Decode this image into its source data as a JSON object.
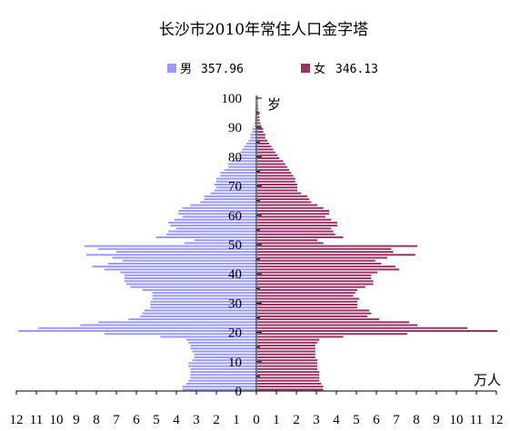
{
  "chart_data": {
    "type": "bar",
    "orientation": "horizontal-population-pyramid",
    "title": "长沙市2010年常住人口金字塔",
    "y_unit_label": "岁",
    "x_unit_label": "万人",
    "y_ticks": [
      "100",
      "90",
      "80",
      "70",
      "60",
      "50",
      "40",
      "30",
      "20",
      "10",
      "0"
    ],
    "x_ticks_left": [
      "12",
      "11",
      "10",
      "9",
      "8",
      "7",
      "6",
      "5",
      "4",
      "3",
      "2",
      "1",
      "0"
    ],
    "x_ticks_right": [
      "1",
      "2",
      "3",
      "4",
      "5",
      "6",
      "7",
      "8",
      "9",
      "10",
      "11",
      "12"
    ],
    "xlim": [
      -12,
      12
    ],
    "ylim": [
      0,
      100
    ],
    "grid": false,
    "legend_position": "top",
    "series": [
      {
        "name": "男",
        "total": "357.96",
        "color": "#9999ff",
        "side": "left",
        "values": [
          3.7,
          3.7,
          3.5,
          3.4,
          3.3,
          3.3,
          3.3,
          3.3,
          3.4,
          3.4,
          3.2,
          3.1,
          3.1,
          3.2,
          3.3,
          3.3,
          3.4,
          3.5,
          4.8,
          7.6,
          11.9,
          10.9,
          8.8,
          7.9,
          6.4,
          5.8,
          5.7,
          5.6,
          5.3,
          5.3,
          5.3,
          5.2,
          5.2,
          5.2,
          5.7,
          6.3,
          6.5,
          6.6,
          6.6,
          6.6,
          6.8,
          7.6,
          8.2,
          7.4,
          6.7,
          7.2,
          8.5,
          7.0,
          7.9,
          8.6,
          3.6,
          3.1,
          5.0,
          4.5,
          4.4,
          4.0,
          4.3,
          4.4,
          4.1,
          3.7,
          3.9,
          3.9,
          3.7,
          3.3,
          2.8,
          2.6,
          2.6,
          2.3,
          2.1,
          2.0,
          2.1,
          2.0,
          2.0,
          1.8,
          1.8,
          1.6,
          1.4,
          1.4,
          1.2,
          1.0,
          0.9,
          0.8,
          0.7,
          0.6,
          0.5,
          0.4,
          0.3,
          0.3,
          0.2,
          0.2,
          0.1,
          0.1,
          0.08,
          0.06,
          0.05,
          0.04,
          0.03,
          0.02,
          0.02,
          0.01,
          0.01
        ]
      },
      {
        "name": "女",
        "total": "346.13",
        "color": "#993366",
        "side": "right",
        "values": [
          3.3,
          3.3,
          3.2,
          3.1,
          3.1,
          3.1,
          3.1,
          3.0,
          3.0,
          3.0,
          3.0,
          2.9,
          2.9,
          2.9,
          2.9,
          2.9,
          3.0,
          3.1,
          4.3,
          7.5,
          12.0,
          10.5,
          8.0,
          7.6,
          6.1,
          5.5,
          5.7,
          5.6,
          5.0,
          5.0,
          5.0,
          5.1,
          4.8,
          4.9,
          5.0,
          5.4,
          5.8,
          5.8,
          5.7,
          5.7,
          6.0,
          7.1,
          6.9,
          6.2,
          5.9,
          6.5,
          7.9,
          6.8,
          6.7,
          8.0,
          3.3,
          3.0,
          4.3,
          3.9,
          3.8,
          3.7,
          4.0,
          4.0,
          3.7,
          3.4,
          3.6,
          3.6,
          3.3,
          3.0,
          2.7,
          2.6,
          2.5,
          2.2,
          2.0,
          2.0,
          2.0,
          1.9,
          1.9,
          1.8,
          1.7,
          1.6,
          1.5,
          1.4,
          1.3,
          1.1,
          1.0,
          0.9,
          0.8,
          0.7,
          0.6,
          0.5,
          0.4,
          0.4,
          0.3,
          0.3,
          0.2,
          0.15,
          0.12,
          0.1,
          0.08,
          0.06,
          0.05,
          0.04,
          0.03,
          0.02,
          0.02
        ]
      }
    ]
  }
}
